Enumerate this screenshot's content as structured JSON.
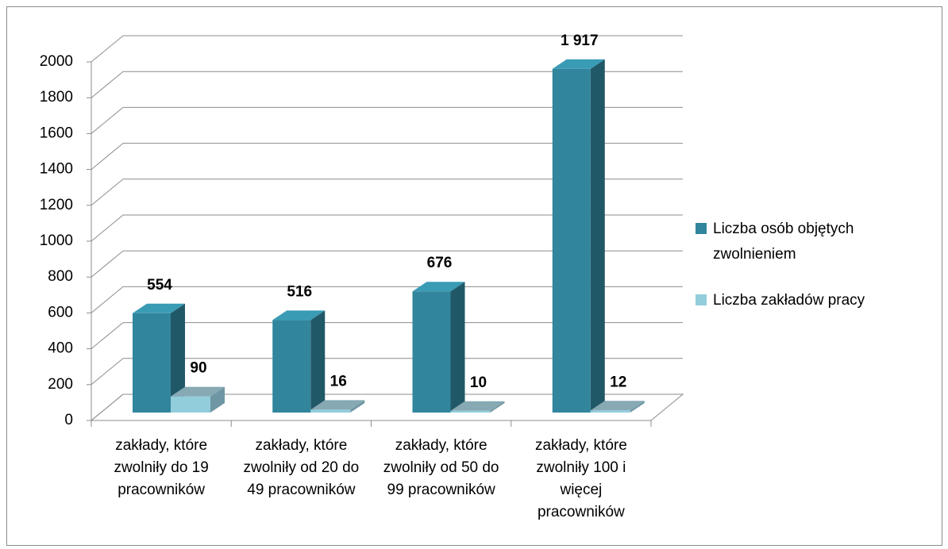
{
  "chart_data": {
    "type": "bar3d",
    "categories": [
      "zakłady, które zwolniły do 19 pracowników",
      "zakłady, które zwolniły od 20 do 49 pracowników",
      "zakłady, które zwolniły od 50 do 99 pracowników",
      "zakłady, które zwolniły 100 i więcej pracowników"
    ],
    "series": [
      {
        "name": "Liczba osób objętych zwolnieniem",
        "color": "#31859c",
        "values": [
          554,
          516,
          676,
          1917
        ],
        "value_labels": [
          "554",
          "516",
          "676",
          "1 917"
        ]
      },
      {
        "name": "Liczba zakładów pracy",
        "color": "#92cddc",
        "values": [
          90,
          16,
          10,
          12
        ]
      }
    ],
    "ylim": [
      0,
      2000
    ],
    "yticks": [
      0,
      200,
      400,
      600,
      800,
      1000,
      1200,
      1400,
      1600,
      1800,
      2000
    ],
    "grid": true,
    "legend": "right"
  }
}
